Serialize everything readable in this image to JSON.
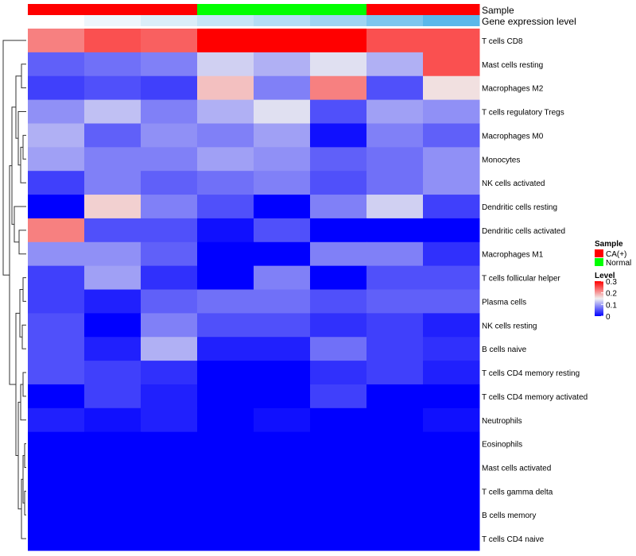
{
  "chart_data": {
    "type": "heatmap",
    "annotation_labels": {
      "sample": "Sample",
      "expression": "Gene expression level"
    },
    "sample_groups": [
      "CA(+)",
      "CA(+)",
      "CA(+)",
      "Normal",
      "Normal",
      "Normal",
      "CA(+)",
      "CA(+)"
    ],
    "expression_level": [
      0.0,
      0.03,
      0.08,
      0.12,
      0.15,
      0.2,
      0.3,
      0.45
    ],
    "rows": [
      "T cells CD8",
      "Mast cells resting",
      "Macrophages M2",
      "T cells regulatory  Tregs",
      "Macrophages M0",
      "Monocytes",
      "NK cells activated",
      "Dendritic cells resting",
      "Dendritic cells activated",
      "Macrophages M1",
      "T cells follicular helper",
      "Plasma cells",
      "NK cells resting",
      "B cells naive",
      "T cells CD4 memory resting",
      "T cells CD4 memory activated",
      "Neutrophils",
      "Eosinophils",
      "Mast cells activated",
      "T cells gamma delta",
      "B cells memory",
      "T cells CD4 naive"
    ],
    "values": [
      [
        0.22,
        0.25,
        0.24,
        0.3,
        0.3,
        0.3,
        0.25,
        0.25
      ],
      [
        0.06,
        0.07,
        0.08,
        0.13,
        0.11,
        0.14,
        0.11,
        0.25
      ],
      [
        0.04,
        0.05,
        0.04,
        0.18,
        0.08,
        0.22,
        0.05,
        0.16
      ],
      [
        0.09,
        0.12,
        0.08,
        0.11,
        0.14,
        0.05,
        0.1,
        0.09
      ],
      [
        0.11,
        0.06,
        0.09,
        0.08,
        0.1,
        0.01,
        0.08,
        0.06
      ],
      [
        0.1,
        0.08,
        0.08,
        0.1,
        0.09,
        0.06,
        0.07,
        0.09
      ],
      [
        0.04,
        0.08,
        0.06,
        0.07,
        0.08,
        0.05,
        0.07,
        0.09
      ],
      [
        0.0,
        0.17,
        0.08,
        0.05,
        0.0,
        0.08,
        0.13,
        0.04
      ],
      [
        0.22,
        0.05,
        0.05,
        0.01,
        0.05,
        0.0,
        0.0,
        0.0
      ],
      [
        0.09,
        0.09,
        0.06,
        0.0,
        0.0,
        0.08,
        0.08,
        0.03
      ],
      [
        0.04,
        0.1,
        0.03,
        0.0,
        0.08,
        0.0,
        0.05,
        0.05
      ],
      [
        0.04,
        0.02,
        0.06,
        0.07,
        0.07,
        0.05,
        0.06,
        0.06
      ],
      [
        0.05,
        0.0,
        0.08,
        0.05,
        0.05,
        0.03,
        0.04,
        0.02
      ],
      [
        0.05,
        0.02,
        0.11,
        0.02,
        0.02,
        0.07,
        0.04,
        0.03
      ],
      [
        0.05,
        0.04,
        0.03,
        0.0,
        0.0,
        0.03,
        0.04,
        0.02
      ],
      [
        0.0,
        0.04,
        0.02,
        0.0,
        0.0,
        0.04,
        0.0,
        0.0
      ],
      [
        0.02,
        0.01,
        0.02,
        0.0,
        0.01,
        0.0,
        0.0,
        0.01
      ],
      [
        0.0,
        0.0,
        0.0,
        0.0,
        0.0,
        0.0,
        0.0,
        0.0
      ],
      [
        0.0,
        0.0,
        0.0,
        0.0,
        0.0,
        0.0,
        0.0,
        0.0
      ],
      [
        0.0,
        0.0,
        0.0,
        0.0,
        0.0,
        0.0,
        0.0,
        0.0
      ],
      [
        0.0,
        0.0,
        0.0,
        0.0,
        0.0,
        0.0,
        0.0,
        0.0
      ],
      [
        0.0,
        0.0,
        0.0,
        0.0,
        0.0,
        0.0,
        0.0,
        0.0
      ]
    ],
    "scale": {
      "min": 0,
      "mid": 0.15,
      "max": 0.3,
      "low_color": "#0000ff",
      "mid_color": "#f0f0f0",
      "high_color": "#ff0000"
    },
    "expression_colors": [
      "#ffffff",
      "#eef6fc",
      "#dbeef9",
      "#c6e5f6",
      "#b4ddf4",
      "#9fd4f1",
      "#7dc6ee",
      "#5bb8ea"
    ],
    "legend": {
      "sample_title": "Sample",
      "sample_entries": [
        {
          "label": "CA(+)",
          "color": "#ff0000"
        },
        {
          "label": "Normal",
          "color": "#00ff00"
        }
      ],
      "level_title": "Level",
      "level_ticks": [
        {
          "label": "0.3",
          "value": 0.3
        },
        {
          "label": "0.2",
          "value": 0.2
        },
        {
          "label": "0.1",
          "value": 0.1
        },
        {
          "label": "0",
          "value": 0
        }
      ]
    },
    "dendrogram": "row clustering tree"
  }
}
